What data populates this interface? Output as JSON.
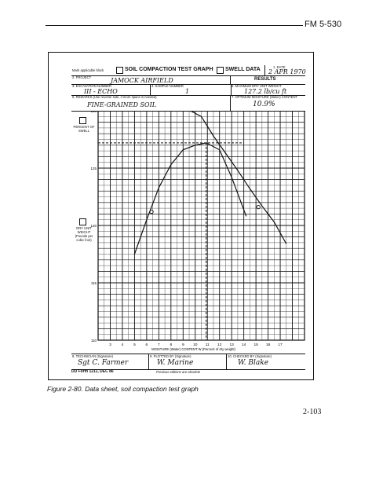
{
  "header": {
    "manual_number": "FM 5-530"
  },
  "form": {
    "mark_box_label": "Mark applicable block",
    "title_compaction": "SOIL COMPACTION TEST GRAPH",
    "title_swell": "SWELL DATA",
    "date_label": "1. DATE",
    "date_value": "2 APR 1970",
    "project_label": "2. PROJECT",
    "project_value": "JAMOCK AIRFIELD",
    "results_label": "RESULTS",
    "excavation_label": "3. EXCAVATION NUMBER",
    "excavation_value": "III - ECHO",
    "sample_label": "4. SAMPLE NUMBER",
    "sample_value": "1",
    "max_dry_label": "6. MAXIMUM DRY UNIT WEIGHT",
    "max_dry_value": "127.2 lb/cu ft",
    "remarks_label": "5. REMARKS (Use reverse side, if more space is needed)",
    "remarks_value": "FINE-GRAINED SOIL",
    "optimum_label": "7. OPTIMUM MOISTURE (Water) CONTENT",
    "optimum_value": "10.9%",
    "percent_swell_label": "PERCENT OF SWELL",
    "dry_unit_label": "DRY UNIT WEIGHT (Pounds per cubic foot)",
    "x_axis_label": "MOISTURE (Water) CONTENT  W (Percent of dry weight)",
    "technician_label": "8. TECHNICIAN (Signature)",
    "technician_sig": "Sgt C. Farmer",
    "plotted_label": "9. PLOTTED BY (Signature)",
    "plotted_sig": "W. Marine",
    "checked_label": "10. CHECKED BY (Signature)",
    "checked_sig": "W. Blake",
    "form_number": "DD Form 1211, DEC 86",
    "previous_editions": "Previous editions are obsolete"
  },
  "chart_data": {
    "type": "line",
    "xlabel": "MOISTURE (Water) CONTENT  W (Percent of dry weight)",
    "ylabel": "DRY UNIT WEIGHT (Pounds per cubic foot)",
    "xlim": [
      2,
      19
    ],
    "ylim": [
      110,
      130
    ],
    "x_ticks": [
      "3",
      "4",
      "5",
      "6",
      "7",
      "8",
      "9",
      "10",
      "11",
      "12",
      "13",
      "14",
      "15",
      "16",
      "17"
    ],
    "y_ticks": [
      "130",
      "125",
      "120",
      "115",
      "110"
    ],
    "series": [
      {
        "x": [
          5,
          6,
          7,
          8,
          9,
          10,
          10.9,
          12,
          13,
          14.2
        ],
        "y": [
          117.5,
          120.5,
          123.3,
          125.3,
          126.6,
          127.0,
          127.2,
          126.6,
          124.2,
          120.8
        ]
      },
      {
        "x": [
          9.6,
          10.5,
          11.5,
          12.5,
          13.5,
          14.5,
          15.5,
          16.5,
          17.5
        ],
        "y": [
          130,
          129.5,
          127.8,
          126.3,
          124.8,
          123.2,
          121.7,
          120.3,
          118.4
        ]
      }
    ],
    "markers": [
      {
        "x": 6.4,
        "y": 121.2,
        "shape": "circle"
      },
      {
        "x": 15.2,
        "y": 121.6,
        "shape": "circle"
      }
    ],
    "reference_lines": {
      "max_dry_unit_weight": 127.2,
      "optimum_moisture": 10.9
    }
  },
  "caption": "Figure 2-80.  Data sheet, soil compaction test graph",
  "page_number": "2-103"
}
